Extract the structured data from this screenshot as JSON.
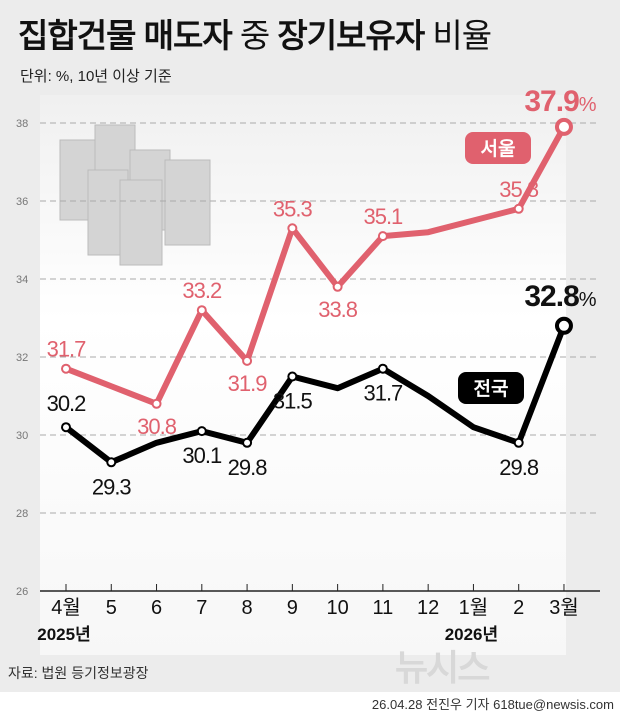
{
  "title": {
    "part1": "집합건물 매도자",
    "part2": "중",
    "part3": "장기보유자",
    "part4": "비율"
  },
  "unit": "단위: %, 10년 이상 기준",
  "source": "자료: 법원 등기정보광장",
  "credit": "26.04.28 전진우 기자 618tue@newsis.com",
  "logo": "뉴시스",
  "colors": {
    "seoul": "#e0616e",
    "national": "#000000",
    "background": "#ececec"
  },
  "chart_data": {
    "type": "line",
    "categories": [
      "4월",
      "5",
      "6",
      "7",
      "8",
      "9",
      "10",
      "11",
      "12",
      "1월",
      "2",
      "3월"
    ],
    "year_labels": [
      {
        "index": 0,
        "label": "2025년"
      },
      {
        "index": 9,
        "label": "2026년"
      }
    ],
    "ylim": [
      26,
      38
    ],
    "yticks": [
      26,
      28,
      30,
      32,
      34,
      36,
      38
    ],
    "grid": true,
    "series": [
      {
        "name": "서울",
        "color": "#e0616e",
        "values": [
          31.7,
          31.25,
          30.8,
          33.2,
          31.9,
          35.3,
          33.8,
          35.1,
          35.2,
          35.5,
          35.8,
          37.9
        ],
        "labeled": [
          true,
          false,
          true,
          true,
          true,
          true,
          true,
          true,
          false,
          false,
          true,
          true
        ]
      },
      {
        "name": "전국",
        "color": "#000000",
        "values": [
          30.2,
          29.3,
          29.8,
          30.1,
          29.8,
          31.5,
          31.2,
          31.7,
          31.0,
          30.2,
          29.8,
          32.8
        ],
        "labeled": [
          true,
          true,
          false,
          true,
          true,
          true,
          false,
          true,
          false,
          false,
          true,
          true
        ]
      }
    ],
    "final_unit": "%"
  }
}
